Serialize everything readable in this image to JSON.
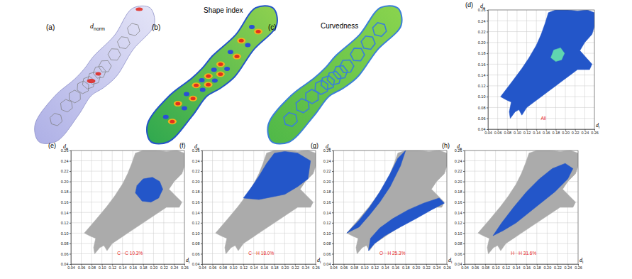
{
  "chart_data": [
    {
      "type": "surface",
      "label": "(a)",
      "title": "dnorm"
    },
    {
      "type": "surface",
      "label": "(b)",
      "title": "Shape index"
    },
    {
      "type": "surface",
      "label": "(c)",
      "title": "Curvedness"
    },
    {
      "type": "fingerprint",
      "label": "(d)",
      "x_label": "di",
      "y_label": "de",
      "annotation": "All",
      "xlim": [
        0.04,
        0.26
      ],
      "ylim": [
        0.04,
        0.26
      ],
      "xticks": [
        0.04,
        0.06,
        0.08,
        {
          "value": 0.1,
          "label": "0.10"
        },
        0.12,
        0.14,
        0.16,
        0.18,
        {
          "value": 0.2,
          "label": "0.20"
        },
        0.22,
        0.24,
        0.26
      ],
      "yticks": [
        0.04,
        0.06,
        0.08,
        {
          "value": 0.1,
          "label": "0.10"
        },
        0.12,
        0.14,
        0.16,
        0.18,
        {
          "value": 0.2,
          "label": "0.20"
        },
        0.22,
        0.24,
        0.26
      ],
      "grid": true,
      "regions": [
        {
          "color": "#2356c9",
          "x": [
            0.066,
            0.09,
            0.11,
            0.125,
            0.14,
            0.15,
            0.158,
            0.165,
            0.18,
            0.205,
            0.225,
            0.245,
            0.26,
            0.26,
            0.255,
            0.24,
            0.23,
            0.245,
            0.255,
            0.25,
            0.225,
            0.21,
            0.195,
            0.18,
            0.165,
            0.15,
            0.135,
            0.12,
            0.11,
            0.104,
            0.096,
            0.086,
            0.084,
            0.088,
            0.078
          ],
          "y": [
            0.1,
            0.128,
            0.152,
            0.172,
            0.195,
            0.215,
            0.235,
            0.255,
            0.26,
            0.26,
            0.258,
            0.26,
            0.255,
            0.23,
            0.215,
            0.2,
            0.185,
            0.17,
            0.16,
            0.15,
            0.15,
            0.14,
            0.13,
            0.12,
            0.11,
            0.1,
            0.09,
            0.08,
            0.066,
            0.076,
            0.072,
            0.06,
            0.072,
            0.09,
            0.094
          ]
        },
        {
          "color": "#5fd6b0",
          "x": [
            0.17,
            0.18,
            0.192,
            0.198,
            0.19,
            0.176
          ],
          "y": [
            0.172,
            0.165,
            0.168,
            0.18,
            0.19,
            0.186
          ]
        }
      ]
    },
    {
      "type": "fingerprint",
      "label": "(e)",
      "x_label": "di",
      "y_label": "de",
      "annotation": "C···C 10.3%",
      "xlim": [
        0.04,
        0.26
      ],
      "ylim": [
        0.04,
        0.26
      ],
      "xticks": [
        0.04,
        0.06,
        0.08,
        {
          "value": 0.1,
          "label": "0.10"
        },
        0.12,
        0.14,
        0.16,
        0.18,
        {
          "value": 0.2,
          "label": "0.20"
        },
        0.22,
        0.24,
        0.26
      ],
      "yticks": [
        0.04,
        0.06,
        0.08,
        {
          "value": 0.1,
          "label": "0.10"
        },
        0.12,
        0.14,
        0.16,
        0.18,
        {
          "value": 0.2,
          "label": "0.20"
        },
        0.22,
        0.24,
        0.26
      ],
      "grid": true,
      "regions": [
        {
          "color": "#ababab",
          "x": [
            0.066,
            0.09,
            0.11,
            0.125,
            0.14,
            0.15,
            0.158,
            0.165,
            0.18,
            0.205,
            0.225,
            0.245,
            0.26,
            0.26,
            0.255,
            0.24,
            0.23,
            0.245,
            0.255,
            0.25,
            0.225,
            0.21,
            0.195,
            0.18,
            0.165,
            0.15,
            0.135,
            0.12,
            0.11,
            0.104,
            0.096,
            0.086,
            0.084,
            0.088,
            0.078
          ],
          "y": [
            0.1,
            0.128,
            0.152,
            0.172,
            0.195,
            0.215,
            0.235,
            0.255,
            0.26,
            0.26,
            0.258,
            0.26,
            0.255,
            0.23,
            0.215,
            0.2,
            0.185,
            0.17,
            0.16,
            0.15,
            0.15,
            0.14,
            0.13,
            0.12,
            0.11,
            0.1,
            0.09,
            0.08,
            0.066,
            0.076,
            0.072,
            0.06,
            0.072,
            0.09,
            0.094
          ]
        },
        {
          "color": "#2356c9",
          "x": [
            0.165,
            0.178,
            0.195,
            0.21,
            0.218,
            0.212,
            0.198,
            0.18,
            0.168
          ],
          "y": [
            0.178,
            0.162,
            0.16,
            0.168,
            0.185,
            0.2,
            0.208,
            0.205,
            0.192
          ]
        }
      ]
    },
    {
      "type": "fingerprint",
      "label": "(f)",
      "x_label": "di",
      "y_label": "de",
      "annotation": "C···H 18.0%",
      "xlim": [
        0.04,
        0.26
      ],
      "ylim": [
        0.04,
        0.26
      ],
      "xticks": [
        0.04,
        0.06,
        0.08,
        {
          "value": 0.1,
          "label": "0.10"
        },
        0.12,
        0.14,
        0.16,
        0.18,
        {
          "value": 0.2,
          "label": "0.20"
        },
        0.22,
        0.24,
        0.26
      ],
      "yticks": [
        0.04,
        0.06,
        0.08,
        {
          "value": 0.1,
          "label": "0.10"
        },
        0.12,
        0.14,
        0.16,
        0.18,
        {
          "value": 0.2,
          "label": "0.20"
        },
        0.22,
        0.24,
        0.26
      ],
      "grid": true,
      "regions": [
        {
          "color": "#ababab",
          "x": [
            0.066,
            0.09,
            0.11,
            0.125,
            0.14,
            0.15,
            0.158,
            0.165,
            0.18,
            0.205,
            0.225,
            0.245,
            0.26,
            0.26,
            0.255,
            0.24,
            0.23,
            0.245,
            0.255,
            0.25,
            0.225,
            0.21,
            0.195,
            0.18,
            0.165,
            0.15,
            0.135,
            0.12,
            0.11,
            0.104,
            0.096,
            0.086,
            0.084,
            0.088,
            0.078
          ],
          "y": [
            0.1,
            0.128,
            0.152,
            0.172,
            0.195,
            0.215,
            0.235,
            0.255,
            0.26,
            0.26,
            0.258,
            0.26,
            0.255,
            0.23,
            0.215,
            0.2,
            0.185,
            0.17,
            0.16,
            0.15,
            0.15,
            0.14,
            0.13,
            0.12,
            0.11,
            0.1,
            0.09,
            0.08,
            0.066,
            0.076,
            0.072,
            0.06,
            0.072,
            0.09,
            0.094
          ]
        },
        {
          "color": "#2356c9",
          "x": [
            0.12,
            0.15,
            0.175,
            0.2,
            0.225,
            0.245,
            0.25,
            0.225,
            0.2,
            0.18,
            0.165,
            0.15,
            0.135
          ],
          "y": [
            0.168,
            0.165,
            0.17,
            0.175,
            0.19,
            0.205,
            0.24,
            0.255,
            0.258,
            0.255,
            0.235,
            0.21,
            0.188
          ]
        }
      ]
    },
    {
      "type": "fingerprint",
      "label": "(g)",
      "x_label": "di",
      "y_label": "de",
      "annotation": "O···H 25.3%",
      "xlim": [
        0.04,
        0.26
      ],
      "ylim": [
        0.04,
        0.26
      ],
      "xticks": [
        0.04,
        0.06,
        0.08,
        {
          "value": 0.1,
          "label": "0.10"
        },
        0.12,
        0.14,
        0.16,
        0.18,
        {
          "value": 0.2,
          "label": "0.20"
        },
        0.22,
        0.24,
        0.26
      ],
      "yticks": [
        0.04,
        0.06,
        0.08,
        {
          "value": 0.1,
          "label": "0.10"
        },
        0.12,
        0.14,
        0.16,
        0.18,
        {
          "value": 0.2,
          "label": "0.20"
        },
        0.22,
        0.24,
        0.26
      ],
      "grid": true,
      "regions": [
        {
          "color": "#ababab",
          "x": [
            0.066,
            0.09,
            0.11,
            0.125,
            0.14,
            0.15,
            0.158,
            0.165,
            0.18,
            0.205,
            0.225,
            0.245,
            0.26,
            0.26,
            0.255,
            0.24,
            0.23,
            0.245,
            0.255,
            0.25,
            0.225,
            0.21,
            0.195,
            0.18,
            0.165,
            0.15,
            0.135,
            0.12,
            0.11,
            0.104,
            0.096,
            0.086,
            0.084,
            0.088,
            0.078
          ],
          "y": [
            0.1,
            0.128,
            0.152,
            0.172,
            0.195,
            0.215,
            0.235,
            0.255,
            0.26,
            0.26,
            0.258,
            0.26,
            0.255,
            0.23,
            0.215,
            0.2,
            0.185,
            0.17,
            0.16,
            0.15,
            0.15,
            0.14,
            0.13,
            0.12,
            0.11,
            0.1,
            0.09,
            0.08,
            0.066,
            0.076,
            0.072,
            0.06,
            0.072,
            0.09,
            0.094
          ]
        },
        {
          "color": "#2356c9",
          "x": [
            0.066,
            0.09,
            0.11,
            0.13,
            0.15,
            0.165,
            0.18,
            0.17,
            0.15,
            0.13,
            0.11,
            0.09
          ],
          "y": [
            0.1,
            0.125,
            0.15,
            0.18,
            0.215,
            0.245,
            0.26,
            0.23,
            0.19,
            0.16,
            0.135,
            0.112
          ]
        },
        {
          "color": "#2356c9",
          "x": [
            0.108,
            0.12,
            0.14,
            0.17,
            0.2,
            0.23,
            0.255,
            0.245,
            0.215,
            0.185,
            0.155,
            0.13,
            0.112
          ],
          "y": [
            0.066,
            0.08,
            0.095,
            0.112,
            0.128,
            0.145,
            0.158,
            0.168,
            0.158,
            0.145,
            0.128,
            0.11,
            0.09
          ]
        }
      ]
    },
    {
      "type": "fingerprint",
      "label": "(h)",
      "x_label": "di",
      "y_label": "de",
      "annotation": "H···H 31.6%",
      "xlim": [
        0.04,
        0.26
      ],
      "ylim": [
        0.04,
        0.26
      ],
      "xticks": [
        0.04,
        0.06,
        0.08,
        {
          "value": 0.1,
          "label": "0.10"
        },
        0.12,
        0.14,
        0.16,
        0.18,
        {
          "value": 0.2,
          "label": "0.20"
        },
        0.22,
        0.24,
        0.26
      ],
      "yticks": [
        0.04,
        0.06,
        0.08,
        {
          "value": 0.1,
          "label": "0.10"
        },
        0.12,
        0.14,
        0.16,
        0.18,
        {
          "value": 0.2,
          "label": "0.20"
        },
        0.22,
        0.24,
        0.26
      ],
      "grid": true,
      "regions": [
        {
          "color": "#ababab",
          "x": [
            0.066,
            0.09,
            0.11,
            0.125,
            0.14,
            0.15,
            0.158,
            0.165,
            0.18,
            0.205,
            0.225,
            0.245,
            0.26,
            0.26,
            0.255,
            0.24,
            0.23,
            0.245,
            0.255,
            0.25,
            0.225,
            0.21,
            0.195,
            0.18,
            0.165,
            0.15,
            0.135,
            0.12,
            0.11,
            0.104,
            0.096,
            0.086,
            0.084,
            0.088,
            0.078
          ],
          "y": [
            0.1,
            0.128,
            0.152,
            0.172,
            0.195,
            0.215,
            0.235,
            0.255,
            0.26,
            0.26,
            0.258,
            0.26,
            0.255,
            0.23,
            0.215,
            0.2,
            0.185,
            0.17,
            0.16,
            0.15,
            0.15,
            0.14,
            0.13,
            0.12,
            0.11,
            0.1,
            0.09,
            0.08,
            0.066,
            0.076,
            0.072,
            0.06,
            0.072,
            0.09,
            0.094
          ]
        },
        {
          "color": "#2356c9",
          "x": [
            0.095,
            0.115,
            0.14,
            0.165,
            0.19,
            0.215,
            0.24,
            0.25,
            0.235,
            0.21,
            0.185,
            0.16,
            0.135,
            0.112
          ],
          "y": [
            0.095,
            0.105,
            0.12,
            0.14,
            0.16,
            0.18,
            0.205,
            0.225,
            0.235,
            0.225,
            0.205,
            0.18,
            0.15,
            0.12
          ]
        }
      ]
    }
  ]
}
